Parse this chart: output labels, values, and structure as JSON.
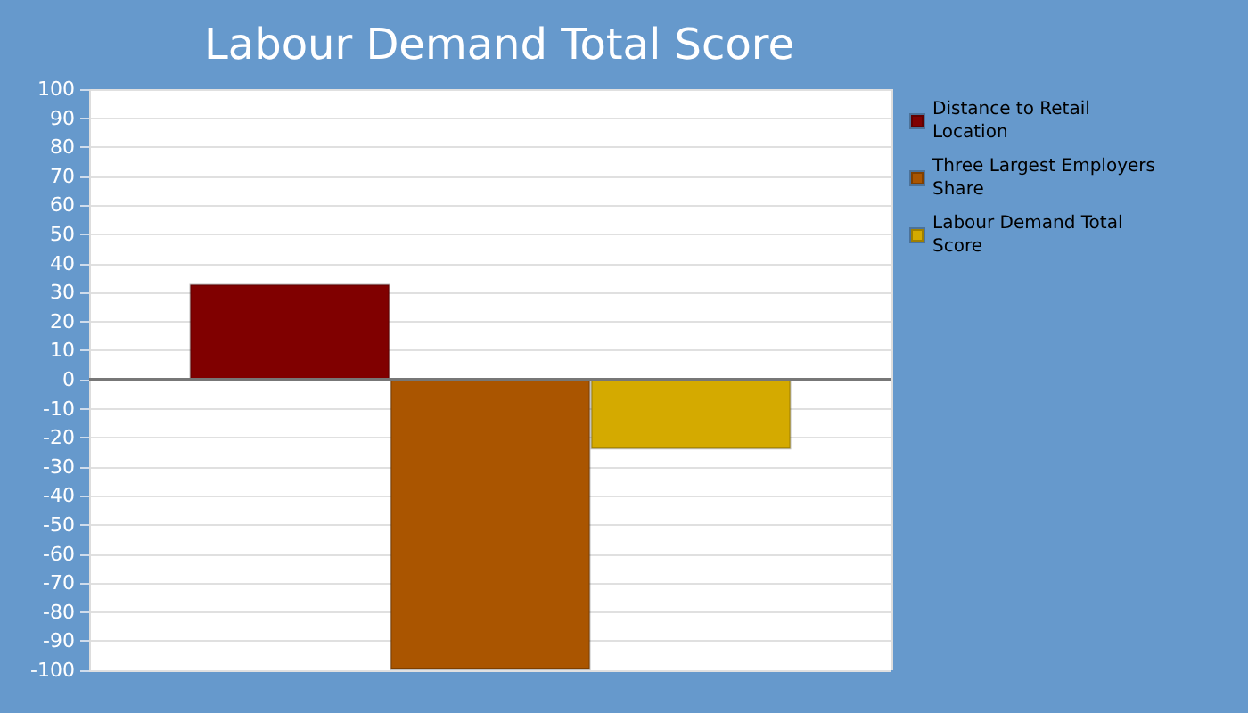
{
  "chart_data": {
    "type": "bar",
    "title": "Labour Demand Total Score",
    "categories": [
      null
    ],
    "series": [
      {
        "name": "Distance to Retail Location",
        "color": "#800000",
        "values": [
          33
        ]
      },
      {
        "name": "Three Largest Employers Share",
        "color": "#aa5500",
        "values": [
          -100
        ]
      },
      {
        "name": "Labour Demand Total Score",
        "color": "#d4aa00",
        "values": [
          -24
        ]
      }
    ],
    "ylim": [
      -100,
      100
    ],
    "yticks": [
      -100,
      -90,
      -80,
      -70,
      -60,
      -50,
      -40,
      -30,
      -20,
      -10,
      0,
      10,
      20,
      30,
      40,
      50,
      60,
      70,
      80,
      90,
      100
    ],
    "grid": true,
    "legend": "top right"
  }
}
